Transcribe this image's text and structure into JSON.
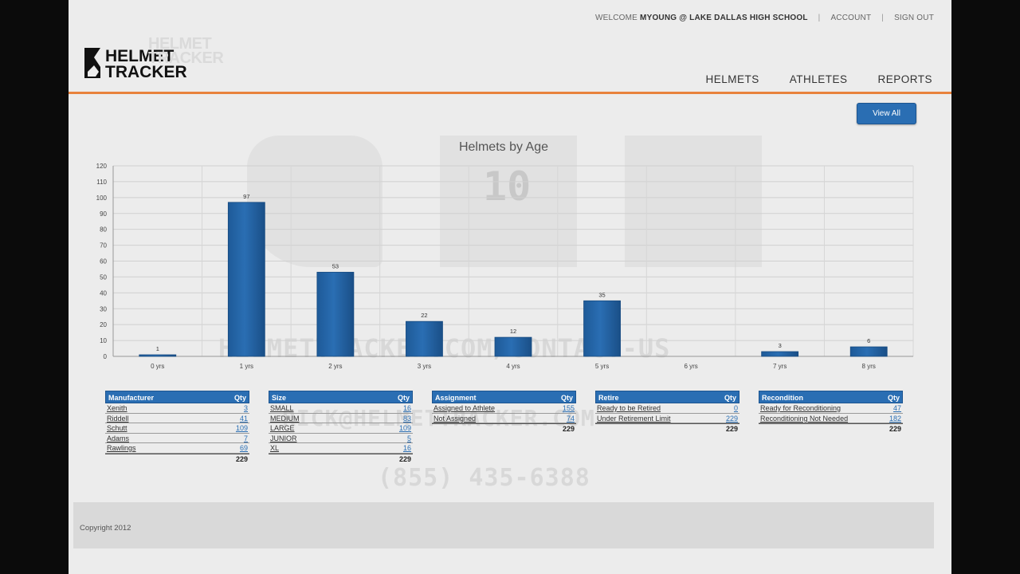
{
  "header": {
    "welcome_prefix": "WELCOME",
    "user": "MYOUNG @ LAKE DALLAS HIGH SCHOOL",
    "account": "ACCOUNT",
    "sign_out": "SIGN OUT",
    "logo_line1": "HELMET",
    "logo_line2": "TRACKER"
  },
  "nav": {
    "helmets": "HELMETS",
    "athletes": "ATHLETES",
    "reports": "REPORTS"
  },
  "view_all_label": "View All",
  "watermarks": {
    "url": "HELMETTRACKER.COM/CONTACT-US",
    "email": "RICK@HELMETTRACKER.COM",
    "phone": "(855) 435-6388",
    "big_number": "10"
  },
  "chart_data": {
    "type": "bar",
    "title": "Helmets by Age",
    "categories": [
      "0 yrs",
      "1 yrs",
      "2 yrs",
      "3 yrs",
      "4 yrs",
      "5 yrs",
      "6 yrs",
      "7 yrs",
      "8 yrs"
    ],
    "values": [
      1,
      97,
      53,
      22,
      12,
      35,
      0,
      3,
      6
    ],
    "data_labels": [
      "1",
      "97",
      "53",
      "22",
      "12",
      "35",
      "",
      "3",
      "6"
    ],
    "ylim": [
      0,
      120
    ],
    "yticks": [
      "0",
      "10",
      "20",
      "30",
      "40",
      "50",
      "60",
      "70",
      "80",
      "90",
      "100",
      "110",
      "120"
    ],
    "grid": true,
    "color": "#2a6eb3"
  },
  "tables": [
    {
      "title": "Manufacturer",
      "qty_label": "Qty",
      "rows": [
        {
          "name": "Xenith",
          "qty": "3"
        },
        {
          "name": "Riddell",
          "qty": "41"
        },
        {
          "name": "Schutt",
          "qty": "109"
        },
        {
          "name": "Adams",
          "qty": "7"
        },
        {
          "name": "Rawlings",
          "qty": "69"
        }
      ],
      "total": "229"
    },
    {
      "title": "Size",
      "qty_label": "Qty",
      "rows": [
        {
          "name": "SMALL",
          "qty": "16"
        },
        {
          "name": "MEDIUM",
          "qty": "83"
        },
        {
          "name": "LARGE",
          "qty": "109"
        },
        {
          "name": "JUNIOR",
          "qty": "5"
        },
        {
          "name": "XL",
          "qty": "16"
        }
      ],
      "total": "229"
    },
    {
      "title": "Assignment",
      "qty_label": "Qty",
      "rows": [
        {
          "name": "Assigned to Athlete",
          "qty": "155"
        },
        {
          "name": "Not Assigned",
          "qty": "74"
        }
      ],
      "total": "229"
    },
    {
      "title": "Retire",
      "qty_label": "Qty",
      "rows": [
        {
          "name": "Ready to be Retired",
          "qty": "0"
        },
        {
          "name": "Under Retirement Limit",
          "qty": "229"
        }
      ],
      "total": "229"
    },
    {
      "title": "Recondition",
      "qty_label": "Qty",
      "rows": [
        {
          "name": "Ready for Reconditioning",
          "qty": "47"
        },
        {
          "name": "Reconditioning Not Needed",
          "qty": "182"
        }
      ],
      "total": "229"
    }
  ],
  "footer": {
    "copyright": "Copyright 2012"
  }
}
